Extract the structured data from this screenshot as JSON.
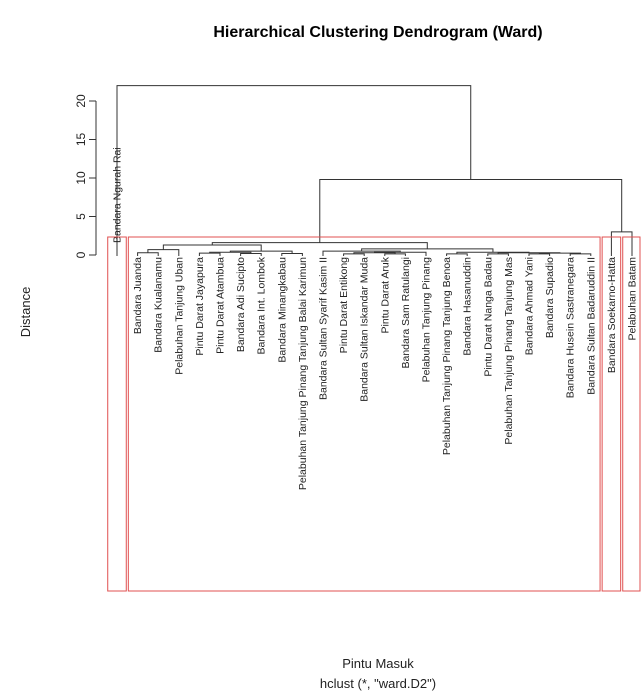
{
  "chart_data": {
    "type": "dendrogram",
    "title": "Hierarchical Clustering Dendrogram (Ward)",
    "ylabel": "Distance",
    "xlabel": "Pintu Masuk",
    "sublabel": "hclust (*, \"ward.D2\")",
    "ylim": [
      0,
      22
    ],
    "yticks": [
      0,
      5,
      10,
      15,
      20
    ],
    "colors": {
      "line": "#333333",
      "cluster_rect": "#e05050"
    },
    "leaves": [
      "Bandara Ngurah Rai",
      "Bandara Juanda",
      "Bandara Kualanamu",
      "Pelabuhan Tanjung Uban",
      "Pintu Darat Jayapura",
      "Pintu Darat Atambua",
      "Bandara Adi Sucipto",
      "Bandara Int. Lombok",
      "Bandara Minangkabau",
      "Pelabuhan Tanjung Pinang Tanjung Balai Karimun",
      "Bandara Sultan Syarif Kasim II",
      "Pintu Darat Entikong",
      "Bandara Sultan Iskandar Muda",
      "Pintu Darat Aruk",
      "Bandara Sam Ratulangi",
      "Pelabuhan Tanjung Pinang",
      "Pelabuhan Tanjung Pinang Tanjung Benoa",
      "Bandara Hasanuddin",
      "Pintu Darat Nanga Badau",
      "Pelabuhan Tanjung Pinang Tanjung Mas",
      "Bandara Ahmad Yani",
      "Bandara Supadio",
      "Bandara Husein Sastranegara",
      "Bandara Sultan Badaruddin II",
      "Bandara Soekarno-Hatta",
      "Pelabuhan Batam"
    ],
    "merges": [
      {
        "id": "m_jk",
        "left": "L1",
        "right": "L2",
        "height": 0.3
      },
      {
        "id": "m_jku",
        "left": "m_jk",
        "right": "L3",
        "height": 0.7
      },
      {
        "id": "m_jayatam",
        "left": "L4",
        "right": "L5",
        "height": 0.25
      },
      {
        "id": "m_adil",
        "left": "L6",
        "right": "L7",
        "height": 0.2
      },
      {
        "id": "m_g2",
        "left": "m_jayatam",
        "right": "m_adil",
        "height": 0.35
      },
      {
        "id": "m_min",
        "left": "L8",
        "right": "L9",
        "height": 0.2
      },
      {
        "id": "m_g3",
        "left": "m_g2",
        "right": "m_min",
        "height": 0.5
      },
      {
        "id": "m_a",
        "left": "m_jku",
        "right": "m_g3",
        "height": 1.3
      },
      {
        "id": "m_e1",
        "left": "L11",
        "right": "L12",
        "height": 0.15
      },
      {
        "id": "m_e2",
        "left": "L13",
        "right": "L14",
        "height": 0.15
      },
      {
        "id": "m_e3",
        "left": "m_e1",
        "right": "m_e2",
        "height": 0.3
      },
      {
        "id": "m_e4",
        "left": "m_e3",
        "right": "L15",
        "height": 0.35
      },
      {
        "id": "m_e5",
        "left": "L10",
        "right": "m_e4",
        "height": 0.5
      },
      {
        "id": "m_f1",
        "left": "L16",
        "right": "L17",
        "height": 0.15
      },
      {
        "id": "m_f2",
        "left": "L18",
        "right": "L19",
        "height": 0.15
      },
      {
        "id": "m_f3",
        "left": "L20",
        "right": "L21",
        "height": 0.15
      },
      {
        "id": "m_f4",
        "left": "L22",
        "right": "L23",
        "height": 0.15
      },
      {
        "id": "m_f5",
        "left": "m_f3",
        "right": "m_f4",
        "height": 0.25
      },
      {
        "id": "m_f6",
        "left": "m_f2",
        "right": "m_f5",
        "height": 0.3
      },
      {
        "id": "m_f7",
        "left": "m_f1",
        "right": "m_f6",
        "height": 0.35
      },
      {
        "id": "m_b",
        "left": "m_e5",
        "right": "m_f7",
        "height": 0.8
      },
      {
        "id": "m_ab",
        "left": "m_a",
        "right": "m_b",
        "height": 1.6
      },
      {
        "id": "m_sb",
        "left": "L24",
        "right": "L25",
        "height": 3.0
      },
      {
        "id": "m_big",
        "left": "m_ab",
        "right": "m_sb",
        "height": 9.8
      },
      {
        "id": "m_root",
        "left": "L0",
        "right": "m_big",
        "height": 22.0
      }
    ],
    "cluster_rects": [
      {
        "first_leaf": 0,
        "last_leaf": 0
      },
      {
        "first_leaf": 1,
        "last_leaf": 23
      },
      {
        "first_leaf": 24,
        "last_leaf": 24
      },
      {
        "first_leaf": 25,
        "last_leaf": 25
      }
    ]
  }
}
